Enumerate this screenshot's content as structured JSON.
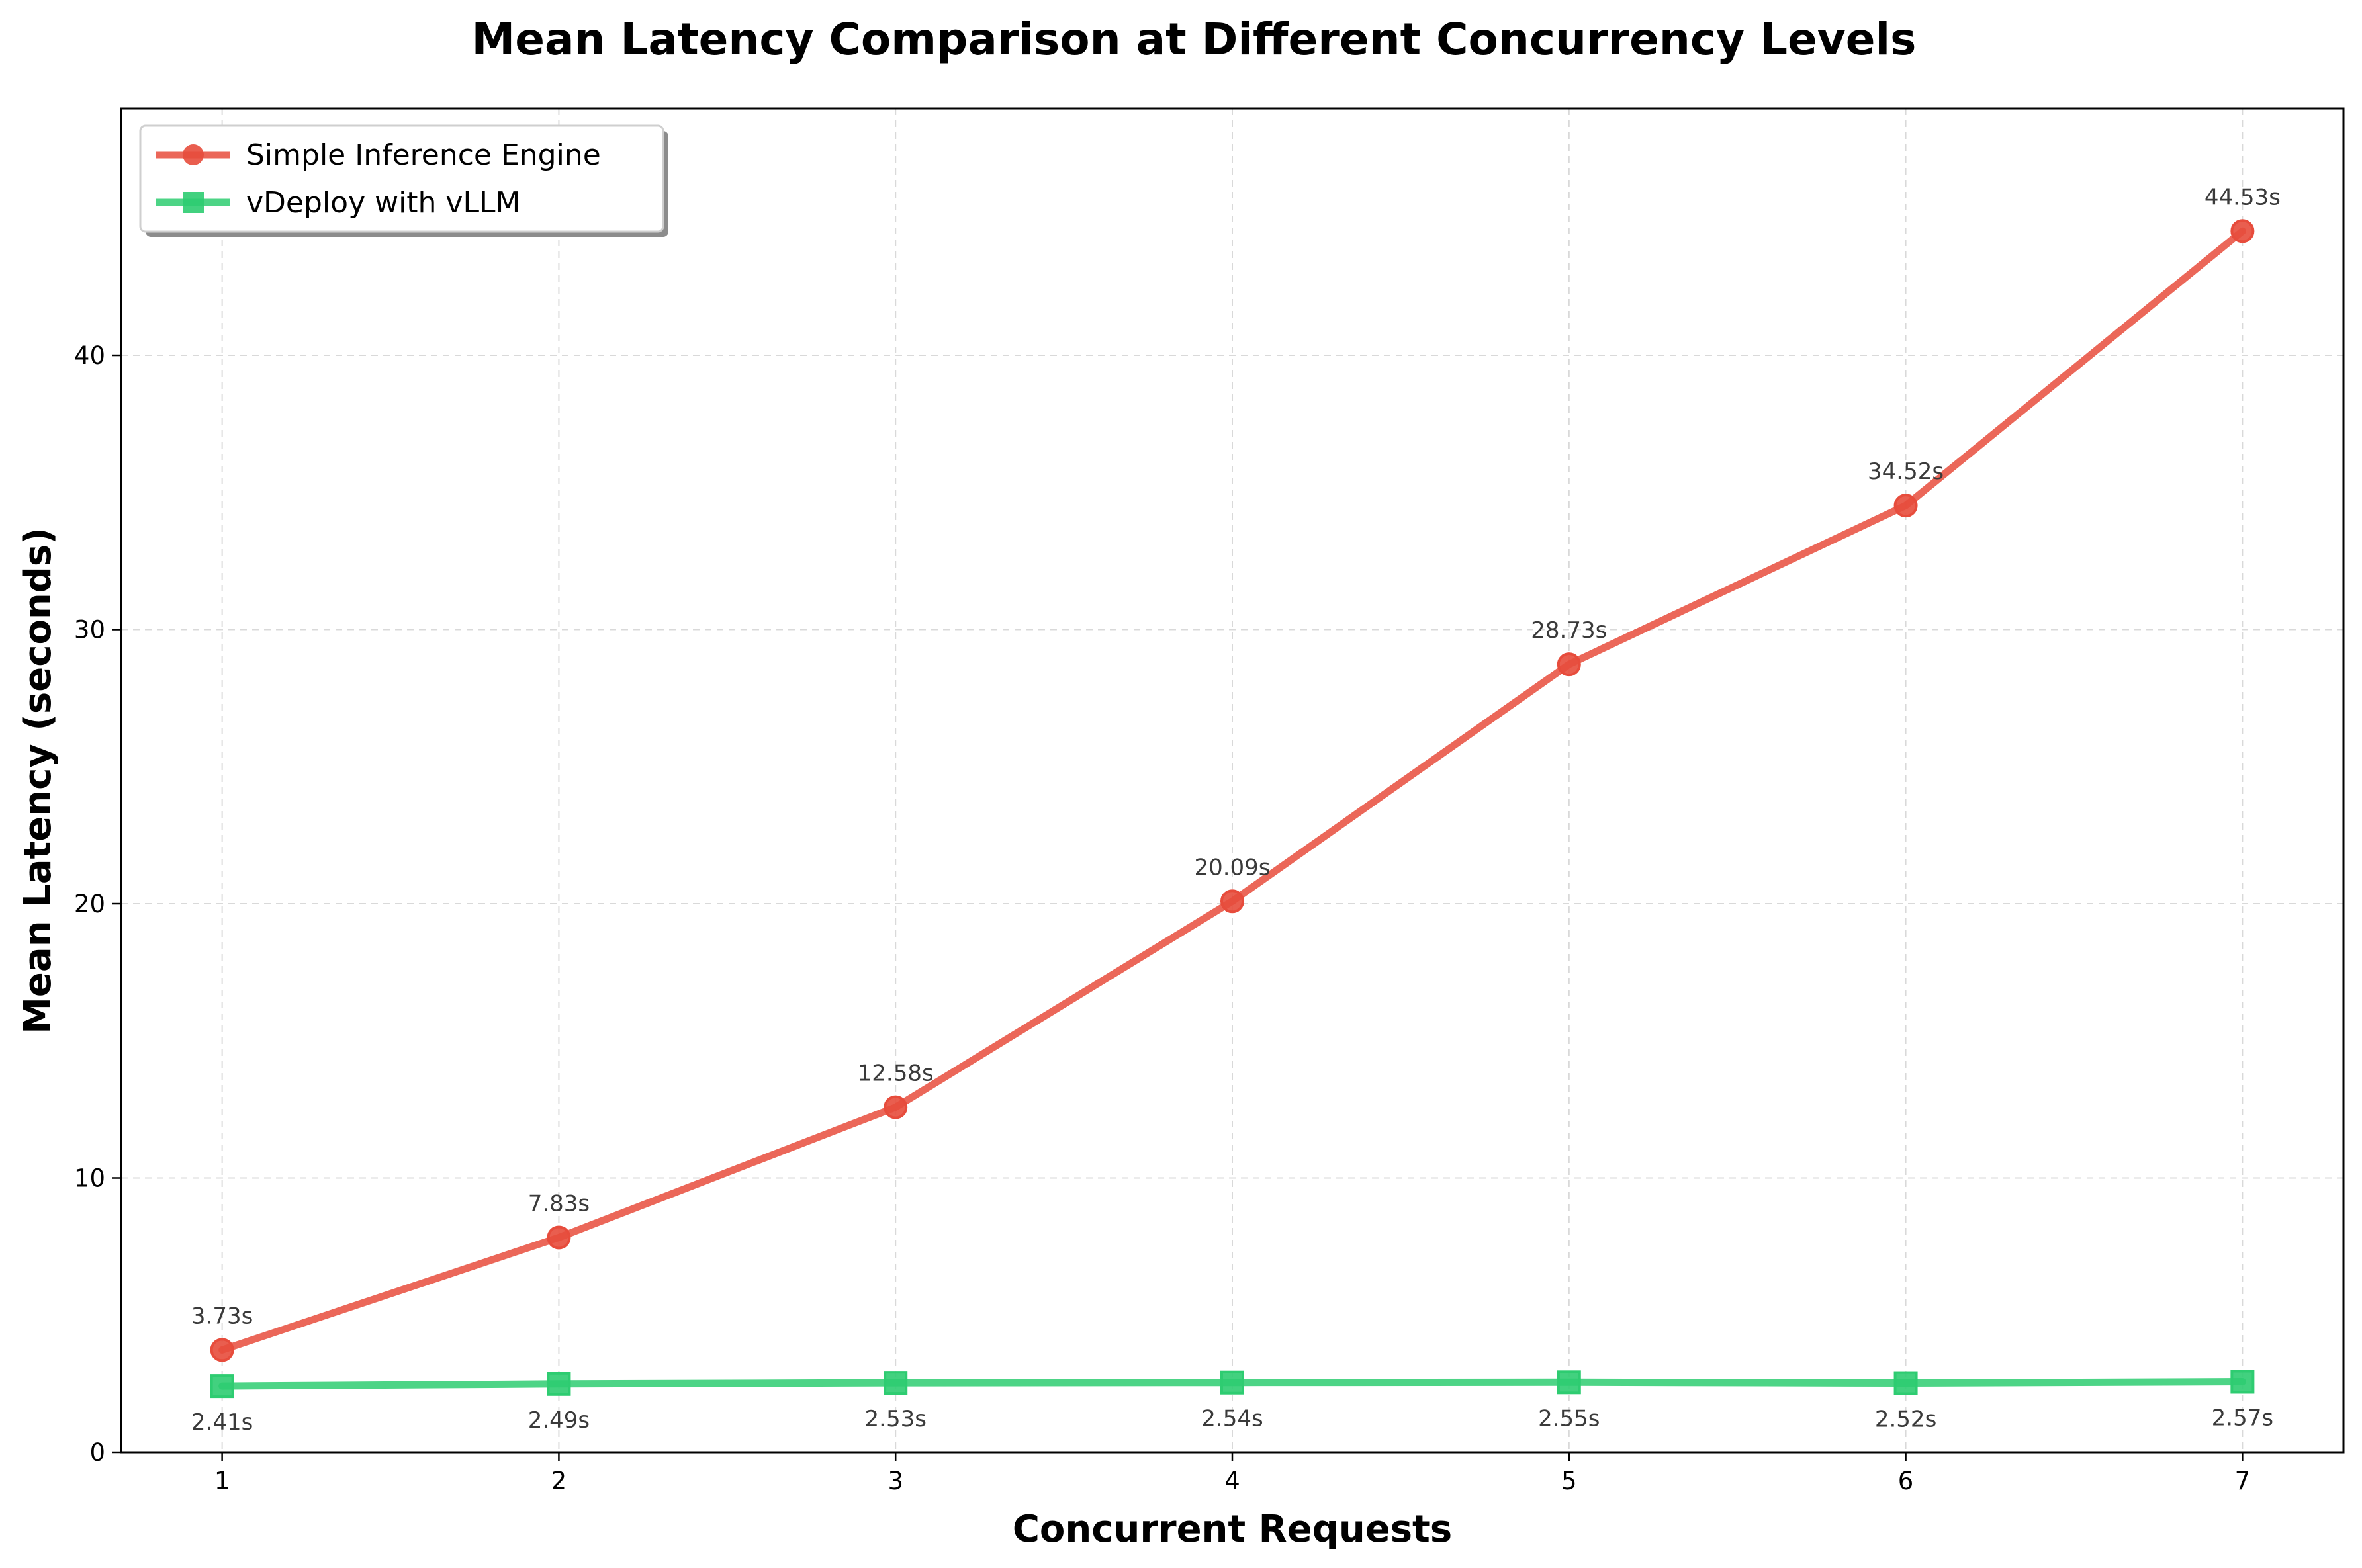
{
  "chart_data": {
    "type": "line",
    "title": "Mean Latency Comparison at Different Concurrency Levels",
    "xlabel": "Concurrent Requests",
    "ylabel": "Mean Latency (seconds)",
    "x": [
      1,
      2,
      3,
      4,
      5,
      6,
      7
    ],
    "xlim": [
      0.7,
      7.3
    ],
    "ylim": [
      0,
      49
    ],
    "x_ticks": [
      1,
      2,
      3,
      4,
      5,
      6,
      7
    ],
    "y_ticks": [
      0,
      10,
      20,
      30,
      40
    ],
    "grid": true,
    "legend_position": "top-left",
    "series": [
      {
        "name": "Simple Inference Engine",
        "color": "#e74c3c",
        "marker": "circle",
        "values": [
          3.73,
          7.83,
          12.58,
          20.09,
          28.73,
          34.52,
          44.53
        ],
        "labels": [
          "3.73s",
          "7.83s",
          "12.58s",
          "20.09s",
          "28.73s",
          "34.52s",
          "44.53s"
        ],
        "label_position": "above"
      },
      {
        "name": "vDeploy with vLLM",
        "color": "#2ecc71",
        "marker": "square",
        "values": [
          2.41,
          2.49,
          2.53,
          2.54,
          2.55,
          2.52,
          2.57
        ],
        "labels": [
          "2.41s",
          "2.49s",
          "2.53s",
          "2.54s",
          "2.55s",
          "2.52s",
          "2.57s"
        ],
        "label_position": "below"
      }
    ]
  }
}
